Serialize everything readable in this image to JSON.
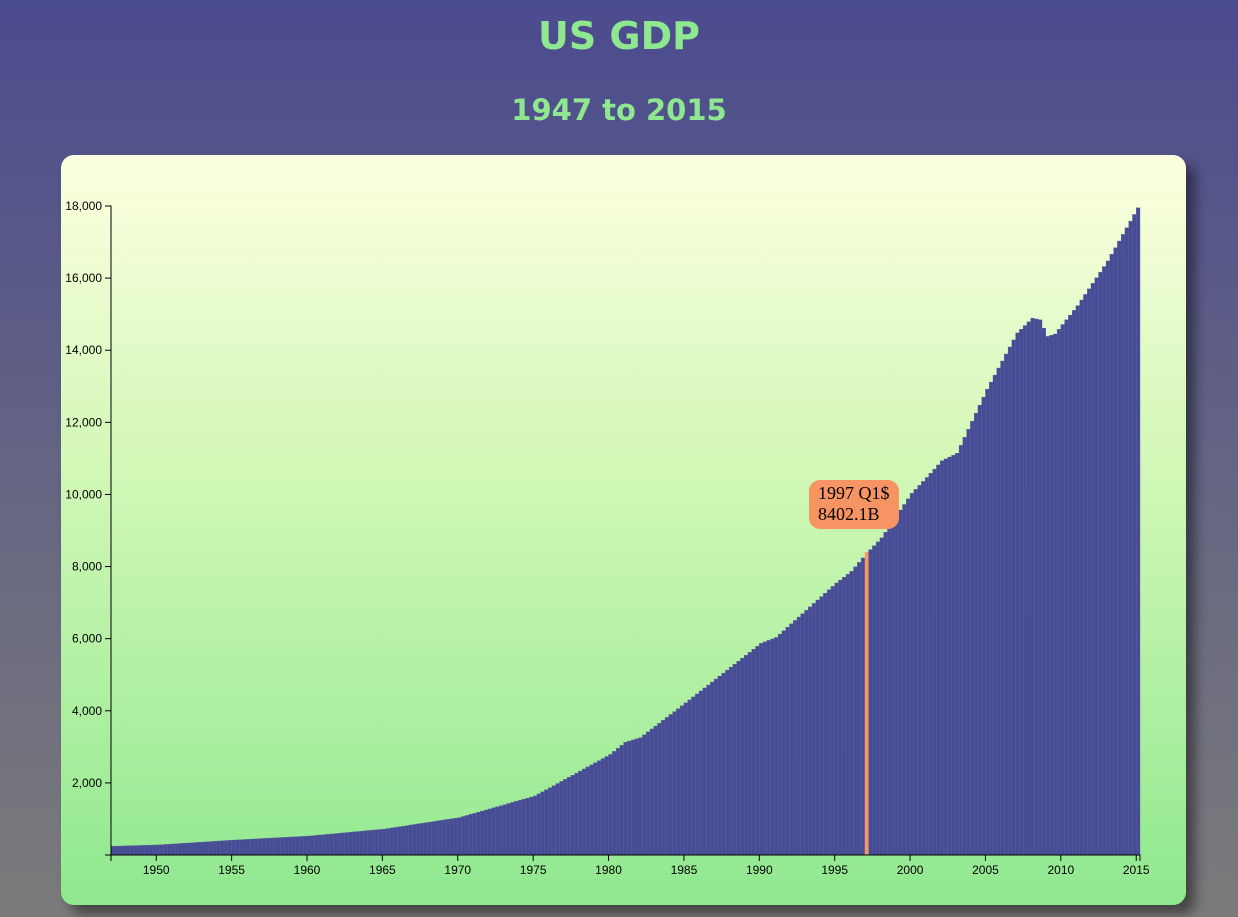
{
  "page": {
    "title": "US GDP",
    "subtitle": "1947 to 2015"
  },
  "colors": {
    "bar": "#474c94",
    "highlight": "#f79463",
    "title": "#8fe88f"
  },
  "tooltip": {
    "line1": "1997 Q1$",
    "line2": "8402.1B"
  },
  "chart_data": {
    "type": "bar",
    "title": "US GDP",
    "subtitle": "1947 to 2015",
    "xlabel": "",
    "ylabel": "",
    "ylim": [
      0,
      18000
    ],
    "xlim": [
      1947,
      2015.25
    ],
    "x_ticks": [
      "1950",
      "1955",
      "1960",
      "1965",
      "1970",
      "1975",
      "1980",
      "1985",
      "1990",
      "1995",
      "2000",
      "2005",
      "2010",
      "2015"
    ],
    "y_ticks": [
      "2,000",
      "4,000",
      "6,000",
      "8,000",
      "10,000",
      "12,000",
      "14,000",
      "16,000",
      "18,000"
    ],
    "grid": false,
    "legend": "none",
    "highlighted": {
      "label": "1997 Q1",
      "value": 8402.1
    },
    "series": [
      {
        "name": "",
        "quarterly": true,
        "start": "1947 Q1",
        "anchors": [
          [
            1947,
            243.1
          ],
          [
            1950,
            280
          ],
          [
            1955,
            414
          ],
          [
            1960,
            526
          ],
          [
            1965,
            719
          ],
          [
            1970,
            1039
          ],
          [
            1975,
            1637
          ],
          [
            1980,
            2789
          ],
          [
            1981,
            3128
          ],
          [
            1982,
            3255
          ],
          [
            1985,
            4219
          ],
          [
            1990,
            5872
          ],
          [
            1991,
            6033
          ],
          [
            1995,
            7545
          ],
          [
            1996,
            7868
          ],
          [
            1997,
            8362
          ],
          [
            1998,
            8797
          ],
          [
            2000,
            10031
          ],
          [
            2001,
            10471
          ],
          [
            2002,
            10934
          ],
          [
            2003,
            11142
          ],
          [
            2005,
            12922
          ],
          [
            2007,
            14480
          ],
          [
            2008,
            14891
          ],
          [
            2008.5,
            14843
          ],
          [
            2009,
            14383
          ],
          [
            2009.5,
            14449
          ],
          [
            2011,
            15238
          ],
          [
            2013,
            16476
          ],
          [
            2015,
            17950
          ]
        ]
      }
    ]
  }
}
